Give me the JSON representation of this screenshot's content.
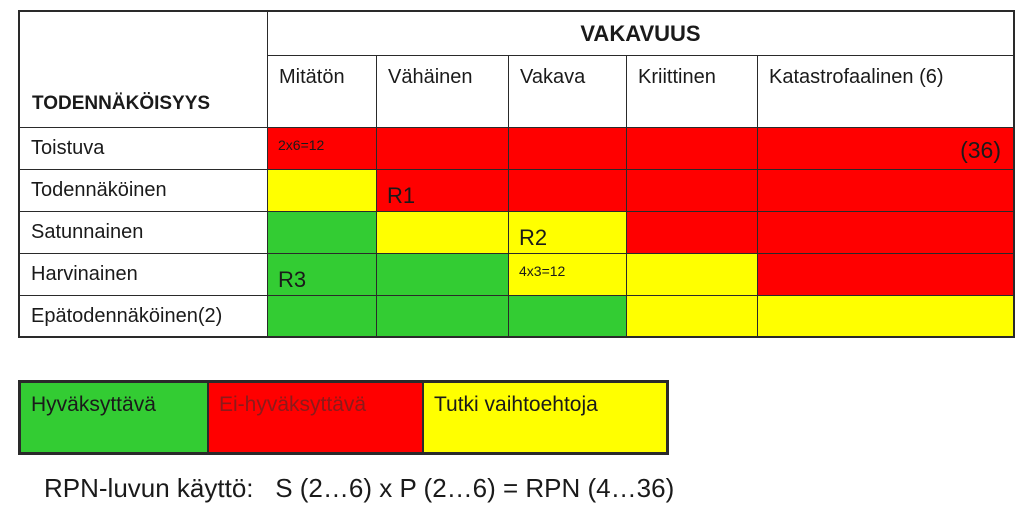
{
  "matrix": {
    "header": "VAKAVUUS",
    "corner_label": "TODENNÄKÖISYYS",
    "severity_levels": [
      "Mitätön",
      "Vähäinen",
      "Vakava",
      "Kriittinen",
      "Katastrofaalinen (6)"
    ],
    "probability_levels": [
      "Toistuva",
      "Todennäköinen",
      "Satunnainen",
      "Harvinainen",
      "Epätodennäköinen(2)"
    ],
    "cell_colors": {
      "red": "#ff0000",
      "yellow": "#ffff00",
      "green": "#33cc33"
    },
    "cells": [
      [
        "red",
        "red",
        "red",
        "red",
        "red"
      ],
      [
        "yellow",
        "red",
        "red",
        "red",
        "red"
      ],
      [
        "green",
        "yellow",
        "yellow",
        "red",
        "red"
      ],
      [
        "green",
        "green",
        "yellow",
        "yellow",
        "red"
      ],
      [
        "green",
        "green",
        "green",
        "yellow",
        "yellow"
      ]
    ],
    "annotations": {
      "toistuva_mitaton": "2x6=12",
      "toistuva_katastrofaalinen": "(36)",
      "todennakoinen_vahainen": "R1",
      "satunnainen_vakava": "R2",
      "harvinainen_mitaton": "R3",
      "harvinainen_vakava": "4x3=12"
    }
  },
  "legend": {
    "acceptable": "Hyväksyttävä",
    "unacceptable": "Ei-hyväksyttävä",
    "investigate": "Tutki vaihtoehtoja"
  },
  "rpn_text": "RPN-luvun käyttö:   S (2…6) x P (2…6) = RPN (4…36)"
}
